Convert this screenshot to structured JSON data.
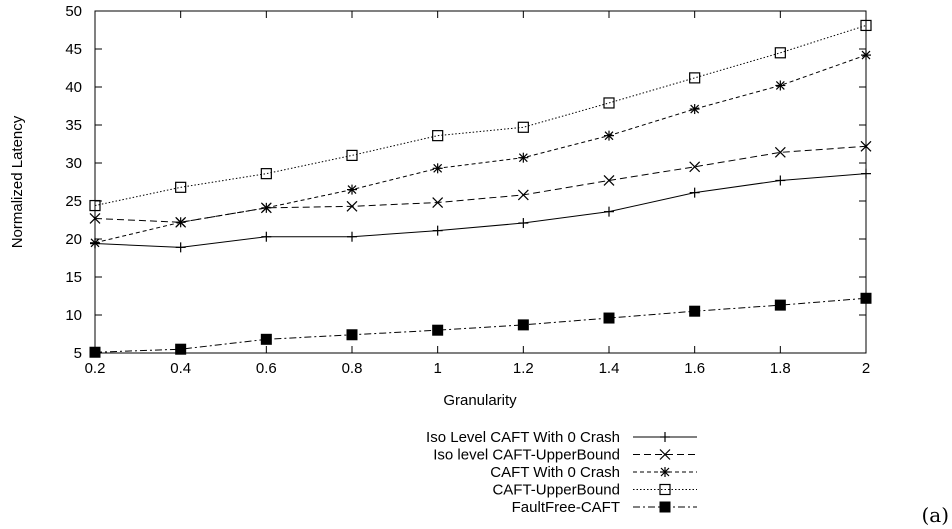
{
  "chart_data": {
    "type": "line",
    "title": "",
    "xlabel": "Granularity",
    "ylabel": "Normalized Latency",
    "xlim": [
      0.2,
      2
    ],
    "ylim": [
      5,
      50
    ],
    "xticks": [
      "0.2",
      "0.4",
      "0.6",
      "0.8",
      "1",
      "1.2",
      "1.4",
      "1.6",
      "1.8",
      "2"
    ],
    "yticks": [
      "5",
      "10",
      "15",
      "20",
      "25",
      "30",
      "35",
      "40",
      "45",
      "50"
    ],
    "x": [
      0.2,
      0.4,
      0.6,
      0.8,
      1.0,
      1.2,
      1.4,
      1.6,
      1.8,
      2.0
    ],
    "grid": false,
    "legend_position": "bottom",
    "panel_label": "(a)",
    "series": [
      {
        "name": "Iso Level CAFT With 0 Crash",
        "marker": "plus",
        "dash": "solid",
        "values": [
          19.4,
          18.9,
          20.3,
          20.3,
          21.1,
          22.1,
          23.6,
          26.1,
          27.7,
          28.6
        ]
      },
      {
        "name": "Iso level CAFT-UpperBound",
        "marker": "cross",
        "dash": "dashed",
        "values": [
          22.7,
          22.2,
          24.1,
          24.3,
          24.8,
          25.8,
          27.7,
          29.5,
          31.4,
          32.2
        ]
      },
      {
        "name": "CAFT With 0 Crash",
        "marker": "star",
        "dash": "short-dashed",
        "values": [
          19.5,
          22.2,
          24.1,
          26.5,
          29.3,
          30.7,
          33.6,
          37.1,
          40.2,
          44.2
        ]
      },
      {
        "name": "CAFT-UpperBound",
        "marker": "open-square",
        "dash": "dotted",
        "values": [
          24.4,
          26.8,
          28.6,
          31.0,
          33.6,
          34.7,
          37.9,
          41.2,
          44.5,
          48.1
        ]
      },
      {
        "name": "FaultFree-CAFT",
        "marker": "filled-square",
        "dash": "dash-dot",
        "values": [
          5.1,
          5.5,
          6.8,
          7.4,
          8.0,
          8.7,
          9.6,
          10.5,
          11.3,
          12.2
        ]
      }
    ]
  }
}
